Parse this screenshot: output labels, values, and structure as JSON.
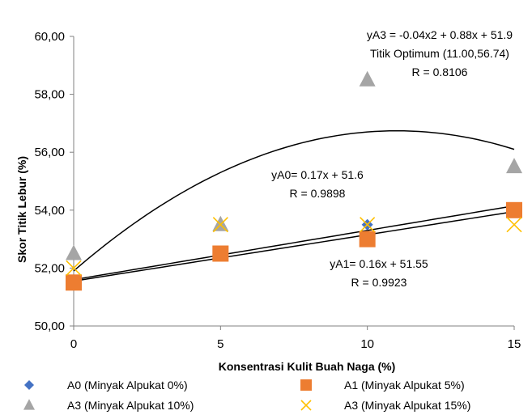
{
  "chart_data": {
    "type": "scatter",
    "xlabel": "Konsentrasi Kulit Buah Naga (%)",
    "ylabel": "Skor Titik Lebur (%)",
    "xlim": [
      0,
      15
    ],
    "ylim": [
      50,
      60
    ],
    "x_ticks": [
      "0",
      "5",
      "10",
      "15"
    ],
    "y_ticks": [
      "50,00",
      "52,00",
      "54,00",
      "56,00",
      "58,00",
      "60,00"
    ],
    "grid": false,
    "legend_position": "bottom",
    "series": [
      {
        "name": "A0 (Minyak Alpukat 0%)",
        "marker": "diamond",
        "color": "#4472C4",
        "x": [
          0,
          5,
          10,
          15
        ],
        "y": [
          51.5,
          52.5,
          53.5,
          54.0
        ]
      },
      {
        "name": "A1 (Minyak Alpukat 5%)",
        "marker": "square",
        "color": "#ED7D31",
        "x": [
          0,
          5,
          10,
          15
        ],
        "y": [
          51.5,
          52.5,
          53.0,
          54.0
        ]
      },
      {
        "name": "A3 (Minyak Alpukat 10%)",
        "marker": "triangle",
        "color": "#A5A5A5",
        "x": [
          0,
          5,
          10,
          15
        ],
        "y": [
          52.5,
          53.5,
          58.5,
          55.5
        ]
      },
      {
        "name": "A3 (Minyak Alpukat 15%)",
        "marker": "cross",
        "color": "#FFC000",
        "x": [
          0,
          5,
          10,
          15
        ],
        "y": [
          52.0,
          53.5,
          53.5,
          53.5
        ]
      }
    ],
    "trendlines": [
      {
        "kind": "linear",
        "coefficients": [
          51.6,
          0.17
        ]
      },
      {
        "kind": "linear",
        "coefficients": [
          51.55,
          0.16
        ]
      },
      {
        "kind": "quadratic",
        "coefficients": [
          51.9,
          0.88,
          -0.04
        ]
      }
    ],
    "annotations": {
      "a3_equation": "yA3 = -0.04x2 + 0.88x + 51.9",
      "a3_optimum": "Titik Optimum (11.00,56.74)",
      "a3_r": "R = 0.8106",
      "a0_equation": "yA0= 0.17x + 51.6",
      "a0_r": "R = 0.9898",
      "a1_equation": "yA1= 0.16x + 51.55",
      "a1_r": "R = 0.9923"
    }
  }
}
